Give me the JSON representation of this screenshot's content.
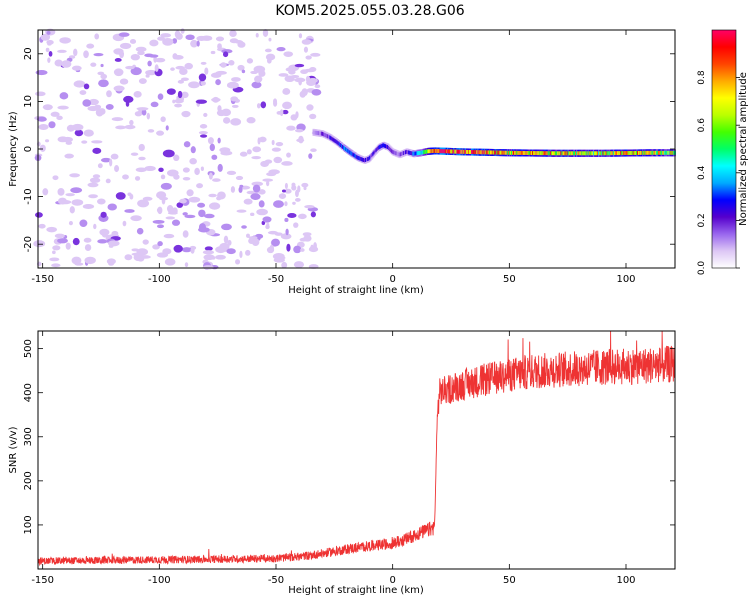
{
  "title": "KOM5.2025.055.03.28.G06",
  "chart_data": [
    {
      "type": "heatmap",
      "xlabel": "Height of straight line (km)",
      "ylabel": "Frequency (Hz)",
      "xlim": [
        -152,
        121
      ],
      "ylim": [
        -25,
        25
      ],
      "xticks": [
        -150,
        -100,
        -50,
        0,
        50,
        100
      ],
      "yticks": [
        -20,
        -10,
        0,
        10,
        20
      ],
      "colorbar": {
        "label": "Normalized spectral amplitude",
        "range": [
          0,
          1
        ],
        "ticks": [
          0.0,
          0.2,
          0.4,
          0.6,
          0.8
        ],
        "colormap": [
          "#ffffff",
          "#ddc7f5",
          "#9966ee",
          "#5500cc",
          "#0000ff",
          "#00aaff",
          "#00ffff",
          "#00ff66",
          "#44ff00",
          "#bbff00",
          "#ffff00",
          "#ffaa00",
          "#ff4400",
          "#ff0000",
          "#ff0066"
        ]
      },
      "noise_region": {
        "x": [
          -152,
          -32
        ],
        "level": "low"
      },
      "ridge": {
        "x": [
          -34,
          -30,
          -27,
          -24,
          -21,
          -18,
          -15,
          -12,
          -10,
          -8,
          -6,
          -4,
          -2,
          0,
          3,
          6,
          9,
          12,
          15,
          18,
          30,
          50,
          70,
          90,
          110,
          121
        ],
        "freq": [
          3.5,
          3.2,
          2.5,
          1.5,
          0.3,
          -0.8,
          -1.8,
          -2.4,
          -2.0,
          -0.8,
          0.3,
          0.8,
          0.4,
          -0.6,
          -1.2,
          -0.6,
          -1.0,
          -0.8,
          -0.5,
          -0.4,
          -0.6,
          -0.8,
          -0.9,
          -0.9,
          -0.8,
          -0.8
        ],
        "amplitude": [
          0.12,
          0.15,
          0.2,
          0.25,
          0.3,
          0.3,
          0.28,
          0.2,
          0.22,
          0.2,
          0.25,
          0.3,
          0.22,
          0.18,
          0.15,
          0.2,
          0.3,
          0.4,
          0.6,
          0.9,
          0.85,
          0.7,
          0.75,
          0.65,
          0.7,
          0.6
        ]
      }
    },
    {
      "type": "line",
      "xlabel": "Height of straight line (km)",
      "ylabel": "SNR (v/v)",
      "xlim": [
        -152,
        121
      ],
      "ylim": [
        0,
        540
      ],
      "xticks": [
        -150,
        -100,
        -50,
        0,
        50,
        100
      ],
      "yticks": [
        100,
        200,
        300,
        400,
        500
      ],
      "color": "#ee3333",
      "series": [
        {
          "x": [
            -152,
            -120,
            -80,
            -50,
            -40,
            -30,
            -20,
            -10,
            0,
            5,
            10,
            15,
            18,
            19,
            20,
            25,
            30,
            40,
            50,
            60,
            70,
            80,
            90,
            100,
            110,
            121
          ],
          "y": [
            18,
            20,
            22,
            24,
            28,
            35,
            45,
            52,
            58,
            66,
            78,
            88,
            95,
            330,
            400,
            410,
            418,
            430,
            440,
            448,
            452,
            455,
            458,
            460,
            462,
            465
          ]
        }
      ]
    }
  ]
}
